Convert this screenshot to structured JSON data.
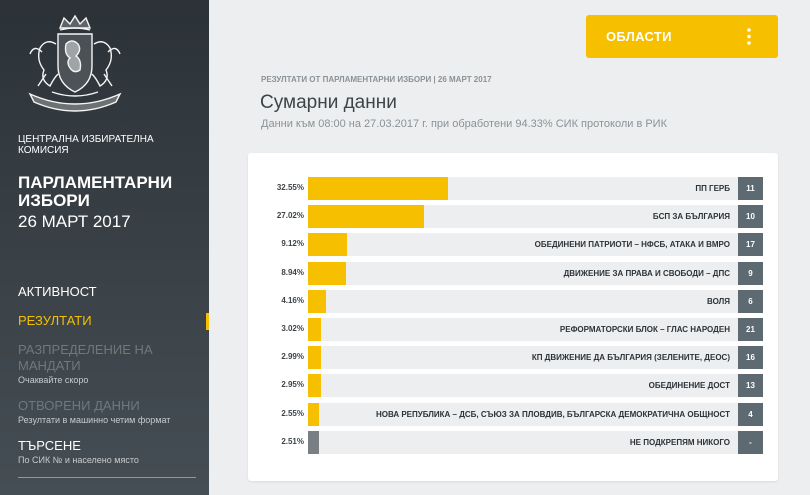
{
  "sidebar": {
    "org": "ЦЕНТРАЛНА ИЗБИРАТЕЛНА КОМИСИЯ",
    "title": "ПАРЛАМЕНТАРНИ ИЗБОРИ",
    "date": "26 МАРТ 2017",
    "nav": [
      {
        "label": "АКТИВНОСТ",
        "sub": ""
      },
      {
        "label": "РЕЗУЛТАТИ",
        "sub": ""
      },
      {
        "label": "РАЗПРЕДЕЛЕНИЕ НА МАНДАТИ",
        "sub": "Очаквайте скоро"
      },
      {
        "label": "ОТВОРЕНИ ДАННИ",
        "sub": "Резултати в машинно четим формат"
      },
      {
        "label": "ТЪРСЕНЕ",
        "sub": "По СИК № и населено място"
      }
    ]
  },
  "header": {
    "areas_button": "ОБЛАСТИ",
    "breadcrumb": "РЕЗУЛТАТИ ОТ ПАРЛАМЕНТАРНИ ИЗБОРИ | 26 МАРТ 2017",
    "title": "Сумарни данни",
    "subtitle": "Данни към 08:00 на 27.03.2017 г. при обработени 94.33% СИК протоколи в РИК"
  },
  "colors": {
    "accent": "#f6bf00",
    "sidebar_bg": "#2b3237",
    "number_badge": "#5d6a72",
    "bar_other": "#7a7f83"
  },
  "results": [
    {
      "percent": 32.55,
      "label": "32.55%",
      "party": "ПП ГЕРБ",
      "number": "11"
    },
    {
      "percent": 27.02,
      "label": "27.02%",
      "party": "БСП ЗА БЪЛГАРИЯ",
      "number": "10"
    },
    {
      "percent": 9.12,
      "label": "9.12%",
      "party": "ОБЕДИНЕНИ ПАТРИОТИ – НФСБ, АТАКА И ВМРО",
      "number": "17"
    },
    {
      "percent": 8.94,
      "label": "8.94%",
      "party": "ДВИЖЕНИЕ ЗА ПРАВА И СВОБОДИ – ДПС",
      "number": "9"
    },
    {
      "percent": 4.16,
      "label": "4.16%",
      "party": "ВОЛЯ",
      "number": "6"
    },
    {
      "percent": 3.02,
      "label": "3.02%",
      "party": "РЕФОРМАТОРСКИ БЛОК – ГЛАС НАРОДЕН",
      "number": "21"
    },
    {
      "percent": 2.99,
      "label": "2.99%",
      "party": "КП ДВИЖЕНИЕ ДА БЪЛГАРИЯ (ЗЕЛЕНИТЕ, ДЕОС)",
      "number": "16"
    },
    {
      "percent": 2.95,
      "label": "2.95%",
      "party": "ОБЕДИНЕНИЕ ДОСТ",
      "number": "13"
    },
    {
      "percent": 2.55,
      "label": "2.55%",
      "party": "НОВА РЕПУБЛИКА – ДСБ, СЪЮЗ ЗА ПЛОВДИВ, БЪЛГАРСКА ДЕМОКРАТИЧНА ОБЩНОСТ",
      "number": "4"
    },
    {
      "percent": 2.51,
      "label": "2.51%",
      "party": "НЕ ПОДКРЕПЯМ НИКОГО",
      "number": "-"
    }
  ]
}
